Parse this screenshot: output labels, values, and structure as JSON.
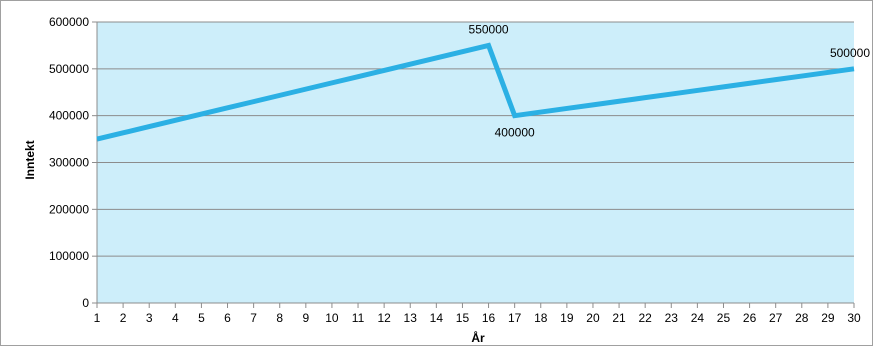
{
  "colors": {
    "plot_background": "#cdeefa",
    "line": "#2bb0e4",
    "grid": "#8c8c8c",
    "frame_border": "#a0a0a0"
  },
  "chart_data": {
    "type": "line",
    "title": "",
    "xlabel": "År",
    "ylabel": "Inntekt",
    "x": [
      1,
      2,
      3,
      4,
      5,
      6,
      7,
      8,
      9,
      10,
      11,
      12,
      13,
      14,
      15,
      16,
      17,
      18,
      19,
      20,
      21,
      22,
      23,
      24,
      25,
      26,
      27,
      28,
      29,
      30
    ],
    "xlim": [
      1,
      30
    ],
    "ylim": [
      0,
      600000
    ],
    "yticks": [
      0,
      100000,
      200000,
      300000,
      400000,
      500000,
      600000
    ],
    "grid": true,
    "legend": "none",
    "series": [
      {
        "values": [
          350000,
          363333,
          376667,
          390000,
          403333,
          416667,
          430000,
          443333,
          456667,
          470000,
          483333,
          496667,
          510000,
          523333,
          536667,
          550000,
          400000,
          407692,
          415385,
          423077,
          430769,
          438462,
          446154,
          453846,
          461538,
          469231,
          476923,
          484615,
          492308,
          500000
        ]
      }
    ],
    "annotations": [
      {
        "x": 16,
        "y": 550000,
        "text": "550000",
        "position": "above"
      },
      {
        "x": 17,
        "y": 400000,
        "text": "400000",
        "position": "below"
      },
      {
        "x": 30,
        "y": 500000,
        "text": "500000",
        "position": "above-left"
      }
    ]
  }
}
